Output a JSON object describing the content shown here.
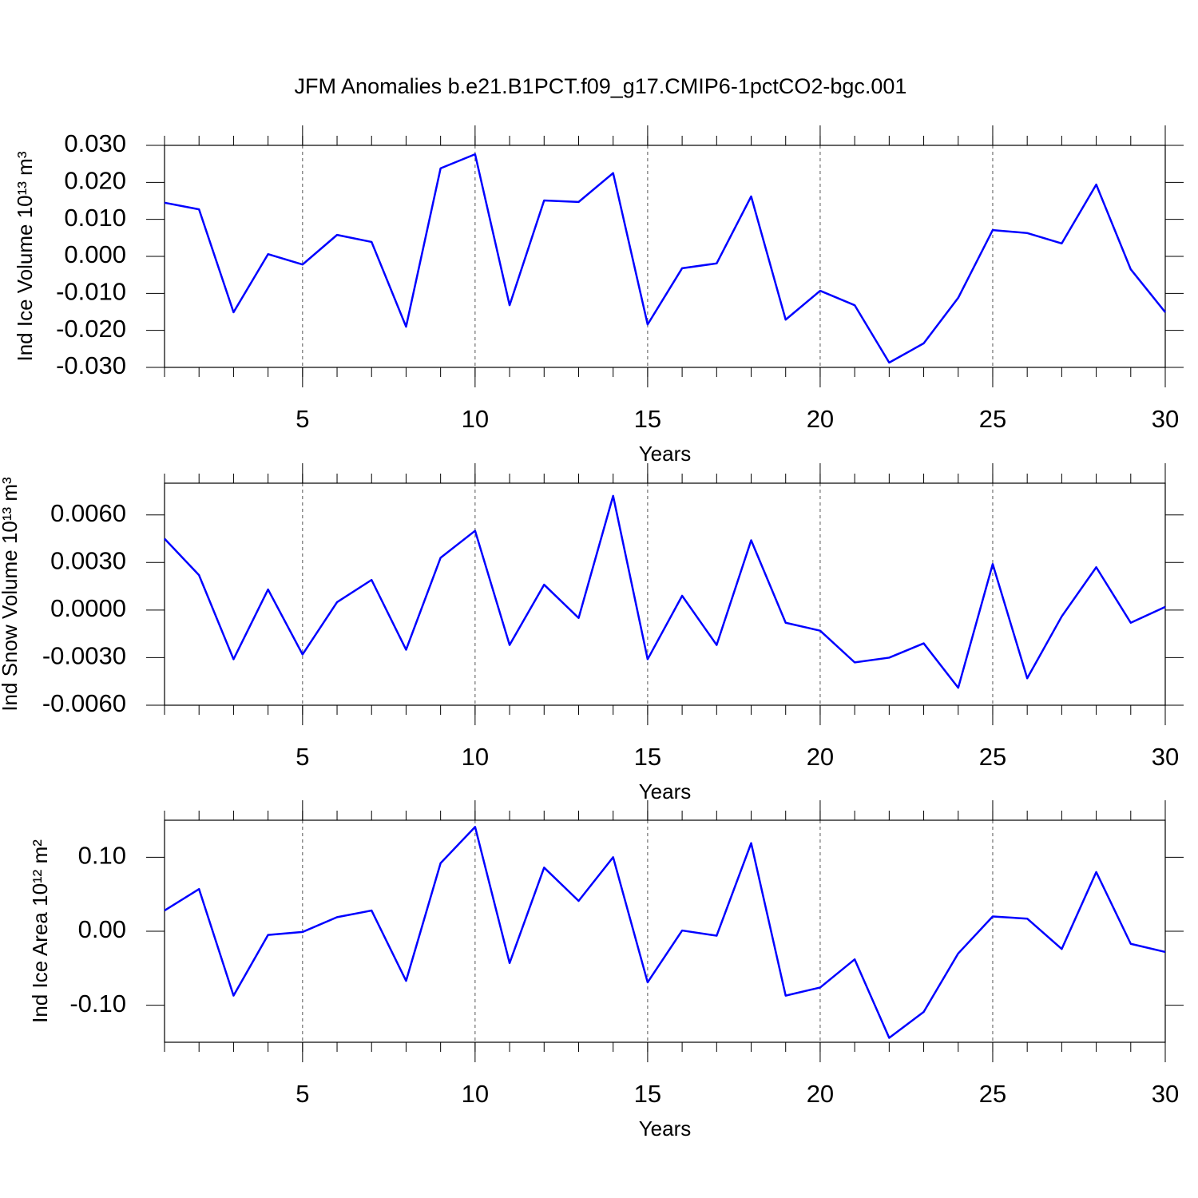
{
  "title": "JFM Anomalies b.e21.B1PCT.f09_g17.CMIP6-1pctCO2-bgc.001",
  "chart_data": [
    {
      "type": "line",
      "xlabel": "Years",
      "ylabel": "Ind Ice Volume 10¹³ m³",
      "color": "#0000ff",
      "x": [
        1,
        2,
        3,
        4,
        5,
        6,
        7,
        8,
        9,
        10,
        11,
        12,
        13,
        14,
        15,
        16,
        17,
        18,
        19,
        20,
        21,
        22,
        23,
        24,
        25,
        26,
        27,
        28,
        29,
        30
      ],
      "values": [
        0.0145,
        0.0127,
        -0.0151,
        0.0006,
        -0.0022,
        0.0058,
        0.0039,
        -0.019,
        0.0238,
        0.0276,
        -0.0132,
        0.0151,
        0.0147,
        0.0225,
        -0.0184,
        -0.0032,
        -0.0019,
        0.0162,
        -0.0171,
        -0.0093,
        -0.0132,
        -0.0287,
        -0.0235,
        -0.0112,
        0.0071,
        0.0063,
        0.0035,
        0.0194,
        -0.0035,
        -0.0151
      ],
      "xlim": [
        1,
        30
      ],
      "xticks": [
        5,
        10,
        15,
        20,
        25,
        30
      ],
      "ylim": [
        -0.03,
        0.03
      ],
      "yticks": [
        {
          "value": -0.03,
          "label": "-0.030"
        },
        {
          "value": -0.02,
          "label": "-0.020"
        },
        {
          "value": -0.01,
          "label": "-0.010"
        },
        {
          "value": 0,
          "label": "0.000"
        },
        {
          "value": 0.01,
          "label": "0.010"
        },
        {
          "value": 0.02,
          "label": "0.020"
        },
        {
          "value": 0.03,
          "label": "0.030"
        }
      ],
      "grid": true
    },
    {
      "type": "line",
      "xlabel": "Years",
      "ylabel": "Ind Snow Volume 10¹³ m³",
      "color": "#0000ff",
      "x": [
        1,
        2,
        3,
        4,
        5,
        6,
        7,
        8,
        9,
        10,
        11,
        12,
        13,
        14,
        15,
        16,
        17,
        18,
        19,
        20,
        21,
        22,
        23,
        24,
        25,
        26,
        27,
        28,
        29,
        30
      ],
      "values": [
        0.0045,
        0.0022,
        -0.0031,
        0.0013,
        -0.0028,
        0.0005,
        0.0019,
        -0.0025,
        0.0033,
        0.005,
        -0.0022,
        0.0016,
        -0.0005,
        0.0072,
        -0.0031,
        0.0009,
        -0.0022,
        0.0044,
        -0.0008,
        -0.0013,
        -0.0033,
        -0.003,
        -0.0021,
        -0.0049,
        0.0029,
        -0.0043,
        -0.0004,
        0.0027,
        -0.0008,
        0.0002
      ],
      "xlim": [
        1,
        30
      ],
      "xticks": [
        5,
        10,
        15,
        20,
        25,
        30
      ],
      "ylim": [
        -0.006,
        0.008
      ],
      "yticks": [
        {
          "value": -0.006,
          "label": "-0.0060"
        },
        {
          "value": -0.003,
          "label": "-0.0030"
        },
        {
          "value": 0,
          "label": "0.0000"
        },
        {
          "value": 0.003,
          "label": "0.0030"
        },
        {
          "value": 0.006,
          "label": "0.0060"
        }
      ],
      "grid": true
    },
    {
      "type": "line",
      "xlabel": "Years",
      "ylabel": "Ind Ice Area 10¹² m²",
      "color": "#0000ff",
      "x": [
        1,
        2,
        3,
        4,
        5,
        6,
        7,
        8,
        9,
        10,
        11,
        12,
        13,
        14,
        15,
        16,
        17,
        18,
        19,
        20,
        21,
        22,
        23,
        24,
        25,
        26,
        27,
        28,
        29,
        30
      ],
      "values": [
        0.028,
        0.057,
        -0.087,
        -0.005,
        -0.001,
        0.019,
        0.028,
        -0.067,
        0.092,
        0.141,
        -0.043,
        0.086,
        0.041,
        0.1,
        -0.069,
        0.001,
        -0.006,
        0.119,
        -0.087,
        -0.076,
        -0.038,
        -0.144,
        -0.109,
        -0.03,
        0.02,
        0.017,
        -0.024,
        0.08,
        -0.017,
        -0.028
      ],
      "xlim": [
        1,
        30
      ],
      "xticks": [
        5,
        10,
        15,
        20,
        25,
        30
      ],
      "ylim": [
        -0.15,
        0.15
      ],
      "yticks": [
        {
          "value": -0.1,
          "label": "-0.10"
        },
        {
          "value": 0,
          "label": "0.00"
        },
        {
          "value": 0.1,
          "label": "0.10"
        }
      ],
      "grid": true
    }
  ]
}
